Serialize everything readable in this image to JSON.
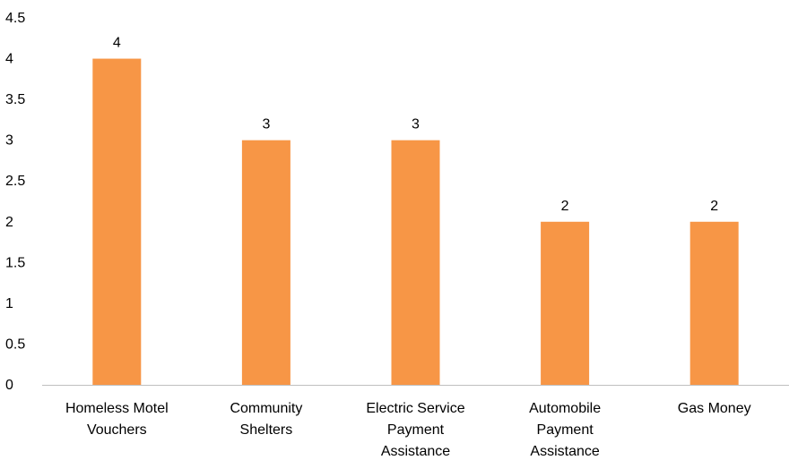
{
  "chart_data": {
    "type": "bar",
    "categories": [
      [
        "Homeless Motel",
        "Vouchers"
      ],
      [
        "Community",
        "Shelters"
      ],
      [
        "Electric Service",
        "Payment",
        "Assistance"
      ],
      [
        "Automobile",
        "Payment",
        "Assistance"
      ],
      [
        "Gas Money"
      ]
    ],
    "values": [
      4,
      3,
      3,
      2,
      2
    ],
    "data_labels": [
      "4",
      "3",
      "3",
      "2",
      "2"
    ],
    "yticks": [
      "0",
      "0.5",
      "1",
      "1.5",
      "2",
      "2.5",
      "3",
      "3.5",
      "4",
      "4.5"
    ],
    "ylim": [
      0,
      4.5
    ],
    "grid": false,
    "legend": "none",
    "colors": {
      "bar": "#F79646",
      "axis": "#BFBFBF"
    }
  }
}
